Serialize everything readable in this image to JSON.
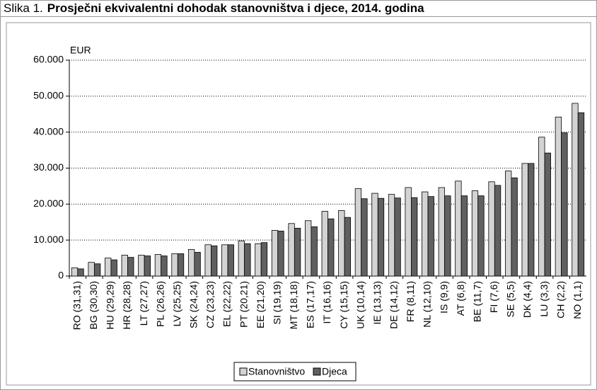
{
  "chart_data": {
    "type": "bar",
    "figure_label": "Slika 1.",
    "title": "Prosječni ekvivalentni dohodak stanovništva i djece, 2014. godina",
    "y_unit": "EUR",
    "categories": [
      "RO (31,31)",
      "BG (30,30)",
      "HU (29,29)",
      "HR (28,28)",
      "LT (27,27)",
      "PL (26,26)",
      "LV (25,25)",
      "SK (24,24)",
      "CZ (23,23)",
      "EL (22,22)",
      "PT (20,21)",
      "EE (21,20)",
      "SI (19,19)",
      "MT (18,18)",
      "ES (17,17)",
      "IT (16,16)",
      "CY (15,15)",
      "UK (10,14)",
      "IE (13,13)",
      "DE (14,12)",
      "FR (8,11)",
      "NL (12,10)",
      "IS (9,9)",
      "AT (6,8)",
      "BE (11,7)",
      "FI (7,6)",
      "SE (5,5)",
      "DK (4,4)",
      "LU (3,3)",
      "CH (2,2)",
      "NO (1,1)"
    ],
    "series": [
      {
        "name": "Stanovništvo",
        "color": "#d3d3d3",
        "values": [
          2300,
          3800,
          5000,
          5800,
          5800,
          6000,
          6200,
          7400,
          8700,
          8700,
          9800,
          9000,
          12700,
          14600,
          15400,
          18000,
          18200,
          24300,
          23000,
          22700,
          24600,
          23400,
          24600,
          26400,
          23700,
          26200,
          29200,
          31300,
          38600,
          44200,
          48000
        ]
      },
      {
        "name": "Djeca",
        "color": "#606060",
        "values": [
          2000,
          3400,
          4500,
          5200,
          5600,
          5600,
          6200,
          6600,
          8400,
          8700,
          9000,
          9300,
          12500,
          13300,
          13700,
          15900,
          16300,
          21500,
          21600,
          21700,
          21800,
          22100,
          22300,
          22300,
          22300,
          25200,
          27300,
          31300,
          34200,
          39800,
          45400
        ]
      }
    ],
    "ylim": [
      0,
      60000
    ],
    "yticks": [
      0,
      {
        "value": 10000,
        "label": "10.000"
      },
      {
        "value": 20000,
        "label": "20.000"
      },
      {
        "value": 30000,
        "label": "30.000"
      },
      {
        "value": 40000,
        "label": "40.000"
      },
      {
        "value": 50000,
        "label": "50.000"
      },
      {
        "value": 60000,
        "label": "60.000"
      }
    ],
    "grid": true
  }
}
